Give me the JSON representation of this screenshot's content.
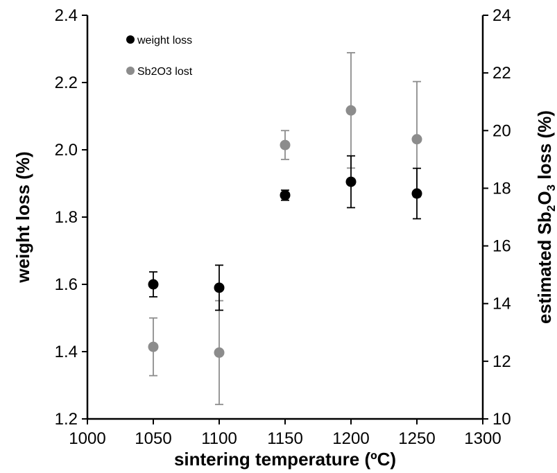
{
  "chart_data": {
    "type": "scatter",
    "xlabel": "sintering temperature (ºC)",
    "ylabel": "weight loss (%)",
    "y2label": {
      "prefix": "estimated Sb",
      "sub1": "2",
      "mid": "O",
      "sub2": "3",
      "suffix": " loss (%)"
    },
    "xlim": [
      1000,
      1300
    ],
    "ylim": [
      1.2,
      2.4
    ],
    "y2lim": [
      10,
      24
    ],
    "xticks": [
      1000,
      1050,
      1100,
      1150,
      1200,
      1250,
      1300
    ],
    "yticks": [
      1.2,
      1.4,
      1.6,
      1.8,
      2.0,
      2.2,
      2.4
    ],
    "y2ticks": [
      10,
      12,
      14,
      16,
      18,
      20,
      22,
      24
    ],
    "legend_position": "top-left",
    "series": [
      {
        "name": "weight loss",
        "axis": "left",
        "color": "#000000",
        "x": [
          1050,
          1100,
          1150,
          1200,
          1250
        ],
        "y": [
          1.6,
          1.59,
          1.865,
          1.905,
          1.87
        ],
        "err": [
          0.037,
          0.067,
          0.015,
          0.077,
          0.075
        ]
      },
      {
        "name": "Sb2O3 lost",
        "axis": "right",
        "color": "#8c8c8c",
        "x": [
          1050,
          1100,
          1150,
          1200,
          1250
        ],
        "y": [
          12.5,
          12.3,
          19.5,
          20.7,
          19.7
        ],
        "err": [
          1.0,
          1.8,
          0.5,
          2.0,
          2.0
        ]
      }
    ]
  }
}
